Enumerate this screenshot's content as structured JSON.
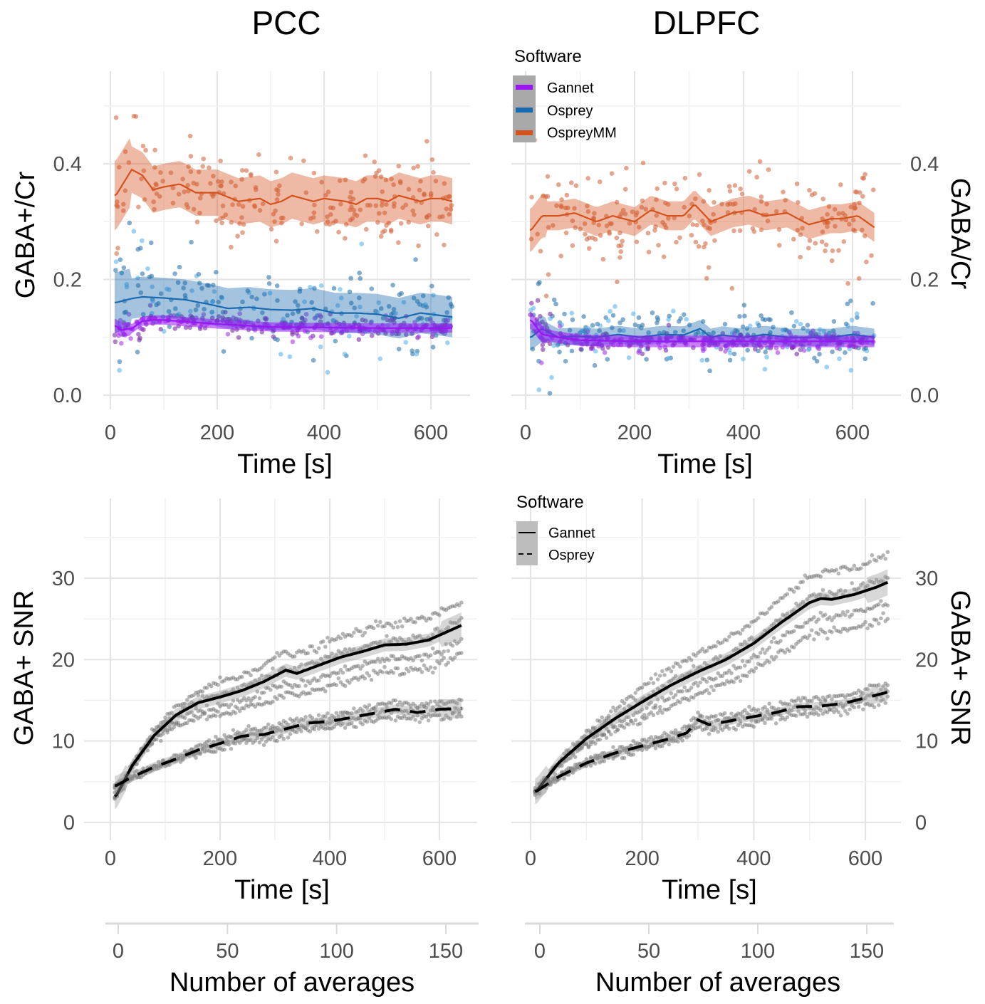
{
  "chart_data": [
    {
      "id": "pcc_ratio",
      "type": "scatter",
      "title": "PCC",
      "xlabel": "Time [s]",
      "ylabel": "GABA+/Cr",
      "xlim": [
        0,
        640
      ],
      "ylim": [
        0,
        0.55
      ],
      "xticks": [
        "0",
        "200",
        "400",
        "600"
      ],
      "xtick_values": [
        0,
        200,
        400,
        600
      ],
      "yticks": [
        "0.0",
        "0.2",
        "0.4"
      ],
      "ytick_values": [
        0,
        0.2,
        0.4
      ],
      "grid": true,
      "series": [
        {
          "name": "OspreyMM",
          "color": "#d4521e",
          "points_color": "#d97a52",
          "x": [
            10,
            40,
            60,
            80,
            100,
            130,
            160,
            200,
            240,
            280,
            300,
            320,
            340,
            380,
            400,
            440,
            460,
            480,
            500,
            520,
            540,
            560,
            580,
            600,
            620,
            640
          ],
          "y": [
            0.345,
            0.39,
            0.38,
            0.355,
            0.36,
            0.365,
            0.35,
            0.35,
            0.335,
            0.34,
            0.33,
            0.335,
            0.345,
            0.335,
            0.34,
            0.335,
            0.33,
            0.34,
            0.34,
            0.335,
            0.345,
            0.34,
            0.335,
            0.34,
            0.34,
            0.335
          ],
          "band": 0.04,
          "scatter_spread": 0.05
        },
        {
          "name": "Osprey",
          "color": "#1a6ab0",
          "points_color": "#3d8bc9",
          "x": [
            10,
            40,
            60,
            100,
            140,
            180,
            220,
            260,
            300,
            340,
            380,
            420,
            460,
            500,
            540,
            580,
            600,
            640
          ],
          "y": [
            0.16,
            0.167,
            0.17,
            0.168,
            0.165,
            0.158,
            0.15,
            0.152,
            0.148,
            0.147,
            0.15,
            0.142,
            0.142,
            0.14,
            0.133,
            0.142,
            0.14,
            0.135
          ],
          "band": 0.035,
          "scatter_spread": 0.045
        },
        {
          "name": "Gannet",
          "color": "#9b16f5",
          "points_color": "#a63ee0",
          "x": [
            10,
            20,
            40,
            60,
            80,
            100,
            140,
            200,
            260,
            300,
            400,
            500,
            600,
            640
          ],
          "y": [
            0.12,
            0.113,
            0.115,
            0.128,
            0.13,
            0.13,
            0.127,
            0.123,
            0.12,
            0.118,
            0.117,
            0.116,
            0.116,
            0.116
          ],
          "band": 0.008,
          "scatter_spread": 0.012
        }
      ],
      "legend": null
    },
    {
      "id": "dlpfc_ratio",
      "type": "scatter",
      "title": "DLPFC",
      "xlabel": "Time [s]",
      "ylabel": "GABA/Cr",
      "xlim": [
        0,
        640
      ],
      "ylim": [
        0,
        0.55
      ],
      "xticks": [
        "0",
        "200",
        "400",
        "600"
      ],
      "xtick_values": [
        0,
        200,
        400,
        600
      ],
      "yticks": [
        "0.0",
        "0.2",
        "0.4"
      ],
      "ytick_values": [
        0,
        0.2,
        0.4
      ],
      "grid": true,
      "series": [
        {
          "name": "OspreyMM",
          "color": "#d4521e",
          "points_color": "#d97a52",
          "x": [
            10,
            30,
            60,
            90,
            130,
            160,
            200,
            230,
            260,
            290,
            310,
            340,
            380,
            410,
            440,
            480,
            520,
            560,
            580,
            610,
            640
          ],
          "y": [
            0.285,
            0.31,
            0.31,
            0.315,
            0.3,
            0.31,
            0.3,
            0.32,
            0.31,
            0.31,
            0.33,
            0.3,
            0.315,
            0.32,
            0.31,
            0.315,
            0.295,
            0.305,
            0.305,
            0.31,
            0.29
          ],
          "band": 0.025,
          "scatter_spread": 0.055
        },
        {
          "name": "Osprey",
          "color": "#1a6ab0",
          "points_color": "#3d8bc9",
          "x": [
            10,
            30,
            60,
            90,
            130,
            170,
            210,
            250,
            290,
            320,
            340,
            360,
            400,
            440,
            480,
            520,
            560,
            600,
            640
          ],
          "y": [
            0.1,
            0.115,
            0.1,
            0.102,
            0.1,
            0.105,
            0.1,
            0.105,
            0.104,
            0.115,
            0.1,
            0.104,
            0.1,
            0.105,
            0.1,
            0.1,
            0.1,
            0.105,
            0.1
          ],
          "band": 0.015,
          "scatter_spread": 0.035
        },
        {
          "name": "Gannet",
          "color": "#9b16f5",
          "points_color": "#a63ee0",
          "x": [
            10,
            30,
            60,
            100,
            200,
            300,
            400,
            500,
            600,
            640
          ],
          "y": [
            0.13,
            0.105,
            0.1,
            0.095,
            0.093,
            0.093,
            0.093,
            0.093,
            0.093,
            0.093
          ],
          "band": 0.01,
          "scatter_spread": 0.012
        }
      ],
      "legend": {
        "title": "Software",
        "placement": "top-left",
        "entries": [
          {
            "label": "Gannet",
            "color": "#9b16f5"
          },
          {
            "label": "Osprey",
            "color": "#1a6ab0"
          },
          {
            "label": "OspreyMM",
            "color": "#d4521e"
          }
        ]
      }
    },
    {
      "id": "pcc_snr",
      "type": "scatter",
      "title": "",
      "xlabel": "Time [s]",
      "ylabel": "GABA+ SNR",
      "xlim": [
        0,
        640
      ],
      "ylim": [
        0,
        37
      ],
      "xticks": [
        "0",
        "200",
        "400",
        "600"
      ],
      "xtick_values": [
        0,
        200,
        400,
        600
      ],
      "yticks": [
        "0",
        "10",
        "20",
        "30"
      ],
      "ytick_values": [
        0,
        10,
        20,
        30
      ],
      "grid": true,
      "series": [
        {
          "name": "Gannet",
          "dash": "solid",
          "color": "#000000",
          "x": [
            10,
            40,
            80,
            120,
            160,
            200,
            240,
            280,
            320,
            340,
            380,
            420,
            460,
            500,
            540,
            580,
            600,
            640
          ],
          "y": [
            3.2,
            7,
            10.7,
            13.2,
            14.7,
            15.4,
            16.2,
            17.3,
            18.7,
            18.3,
            19.3,
            20.3,
            21,
            21.8,
            21.9,
            22.4,
            23,
            24.2
          ],
          "band": 0.8
        },
        {
          "name": "Osprey",
          "dash": "dashed",
          "color": "#000000",
          "x": [
            10,
            40,
            80,
            120,
            160,
            200,
            240,
            280,
            320,
            360,
            400,
            440,
            480,
            520,
            560,
            600,
            640
          ],
          "y": [
            4.5,
            5.6,
            6.8,
            7.8,
            8.9,
            9.7,
            10.6,
            10.8,
            11.5,
            12.2,
            12.4,
            12.9,
            13.4,
            13.9,
            13.5,
            13.9,
            14
          ],
          "band": 0.6
        }
      ],
      "secondary_x": {
        "label": "Number of averages",
        "ticks": [
          "0",
          "50",
          "100",
          "150"
        ],
        "tick_values": [
          0,
          50,
          100,
          150
        ],
        "lim": [
          -2,
          162
        ]
      },
      "legend": null
    },
    {
      "id": "dlpfc_snr",
      "type": "scatter",
      "title": "",
      "xlabel": "Time [s]",
      "ylabel": "GABA+ SNR",
      "xlim": [
        0,
        640
      ],
      "ylim": [
        0,
        37
      ],
      "xticks": [
        "0",
        "200",
        "400",
        "600"
      ],
      "xtick_values": [
        0,
        200,
        400,
        600
      ],
      "yticks": [
        "0",
        "10",
        "20",
        "30"
      ],
      "ytick_values": [
        0,
        10,
        20,
        30
      ],
      "grid": true,
      "series": [
        {
          "name": "Gannet",
          "dash": "solid",
          "color": "#000000",
          "x": [
            10,
            50,
            100,
            150,
            200,
            250,
            300,
            350,
            400,
            450,
            500,
            520,
            540,
            580,
            620,
            640
          ],
          "y": [
            3.8,
            7.3,
            10.3,
            12.7,
            14.8,
            16.8,
            18.5,
            20,
            22,
            24.6,
            27,
            27.5,
            27.4,
            28,
            28.9,
            29.5
          ],
          "band": 0.8
        },
        {
          "name": "Osprey",
          "dash": "dashed",
          "color": "#000000",
          "x": [
            10,
            50,
            100,
            150,
            200,
            250,
            280,
            300,
            320,
            360,
            400,
            440,
            480,
            520,
            560,
            600,
            640
          ],
          "y": [
            3.8,
            5.6,
            7.3,
            8.5,
            9.4,
            10.3,
            11,
            12.6,
            12,
            12.5,
            13,
            13.5,
            14.2,
            14.3,
            14.6,
            15.3,
            16
          ],
          "band": 0.5
        }
      ],
      "secondary_x": {
        "label": "Number of averages",
        "ticks": [
          "0",
          "50",
          "100",
          "150"
        ],
        "tick_values": [
          0,
          50,
          100,
          150
        ],
        "lim": [
          -2,
          162
        ]
      },
      "legend": {
        "title": "Software",
        "placement": "top-left",
        "entries": [
          {
            "label": "Gannet",
            "dash": "solid"
          },
          {
            "label": "Osprey",
            "dash": "dashed"
          }
        ]
      }
    }
  ]
}
